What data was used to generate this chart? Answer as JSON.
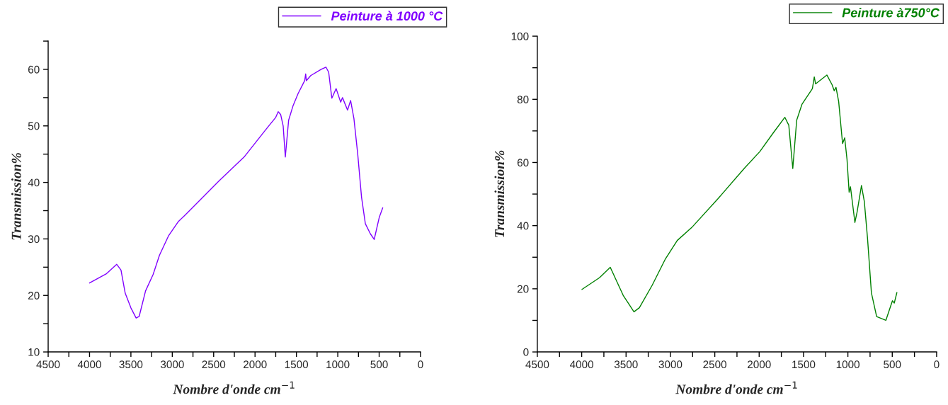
{
  "chart_data": [
    {
      "type": "line",
      "xlabel": "Nombre d'onde cm$^{−1}$",
      "ylabel": "Transmission%",
      "xlim": [
        4500,
        0
      ],
      "ylim": [
        10,
        65
      ],
      "legend": "top right",
      "grid": false,
      "xticks": [
        4500,
        {
          "value": 4250,
          "label": null
        },
        4000,
        {
          "value": 3750,
          "label": null
        },
        3500,
        {
          "value": 3250,
          "label": null
        },
        3000,
        {
          "value": 2750,
          "label": null
        },
        2500,
        {
          "value": 2250,
          "label": null
        },
        2000,
        {
          "value": 1750,
          "label": null
        },
        1500,
        {
          "value": 1250,
          "label": null
        },
        1000,
        {
          "value": 750,
          "label": null
        },
        500,
        {
          "value": 250,
          "label": null
        },
        0
      ],
      "yticks": [
        10,
        {
          "value": 15,
          "label": null
        },
        20,
        {
          "value": 25,
          "label": null
        },
        30,
        {
          "value": 35,
          "label": null
        },
        40,
        {
          "value": 45,
          "label": null
        },
        50,
        {
          "value": 55,
          "label": null
        },
        60,
        {
          "value": 65,
          "label": null
        }
      ],
      "series": [
        {
          "name": "Peinture à 1000 °C",
          "color": "#8000ff",
          "x": [
            4000,
            3800,
            3671,
            3620,
            3569,
            3500,
            3437,
            3400,
            3323,
            3232,
            3155,
            3047,
            2925,
            2847,
            2433,
            2126,
            1850,
            1750,
            1720,
            1690,
            1660,
            1634,
            1594,
            1542,
            1480,
            1400,
            1388,
            1380,
            1327,
            1200,
            1143,
            1110,
            1072,
            1020,
            965,
            943,
            882,
            845,
            805,
            759,
            713,
            667,
            606,
            560,
            499,
            457
          ],
          "values": [
            22.2,
            23.8,
            25.5,
            24.5,
            20.4,
            17.8,
            16.0,
            16.3,
            20.8,
            23.7,
            27.1,
            30.5,
            33.1,
            34.2,
            40.3,
            44.6,
            49.7,
            51.5,
            52.5,
            52.0,
            50.0,
            44.5,
            51.0,
            53.5,
            55.7,
            58.0,
            59.2,
            58.0,
            58.9,
            60.0,
            60.4,
            59.5,
            54.9,
            56.6,
            54.2,
            55.0,
            52.8,
            54.5,
            51.3,
            45.0,
            37.4,
            32.7,
            30.9,
            29.9,
            33.8,
            35.5
          ]
        }
      ]
    },
    {
      "type": "line",
      "xlabel": "Nombre d'onde cm$^{−1}$",
      "ylabel": "Transmission%",
      "xlim": [
        4500,
        0
      ],
      "ylim": [
        0,
        100
      ],
      "legend": "top right",
      "grid": false,
      "xticks": [
        4500,
        {
          "value": 4250,
          "label": null
        },
        4000,
        {
          "value": 3750,
          "label": null
        },
        3500,
        {
          "value": 3250,
          "label": null
        },
        3000,
        {
          "value": 2750,
          "label": null
        },
        2500,
        {
          "value": 2250,
          "label": null
        },
        2000,
        {
          "value": 1750,
          "label": null
        },
        1500,
        {
          "value": 1250,
          "label": null
        },
        1000,
        {
          "value": 750,
          "label": null
        },
        500,
        {
          "value": 250,
          "label": null
        },
        0
      ],
      "yticks": [
        0,
        {
          "value": 10,
          "label": null
        },
        20,
        {
          "value": 30,
          "label": null
        },
        40,
        {
          "value": 50,
          "label": null
        },
        60,
        {
          "value": 70,
          "label": null
        },
        80,
        {
          "value": 90,
          "label": null
        },
        100
      ],
      "series": [
        {
          "name": "Peinture à750°C",
          "color": "#008000",
          "x": [
            3997,
            3800,
            3678,
            3530,
            3411,
            3350,
            3204,
            3056,
            2923,
            2760,
            2465,
            2169,
            1991,
            1843,
            1710,
            1666,
            1621,
            1577,
            1518,
            1400,
            1379,
            1364,
            1237,
            1178,
            1154,
            1134,
            1104,
            1060,
            1036,
            1010,
            986,
            971,
            921,
            897,
            847,
            815,
            779,
            735,
            676,
            572,
            498,
            477,
            448
          ],
          "values": [
            19.8,
            23.5,
            26.8,
            17.8,
            12.7,
            14.0,
            21.2,
            29.5,
            35.3,
            39.4,
            48.5,
            58.1,
            63.5,
            69.3,
            74.3,
            71.8,
            58.1,
            73.4,
            78.4,
            83.4,
            87.1,
            84.9,
            87.7,
            84.6,
            82.7,
            83.8,
            79.3,
            66.0,
            67.8,
            61.0,
            50.6,
            52.3,
            41.0,
            44.2,
            52.7,
            47.7,
            36.1,
            18.7,
            11.2,
            10.0,
            16.2,
            15.5,
            18.8
          ]
        }
      ]
    }
  ]
}
